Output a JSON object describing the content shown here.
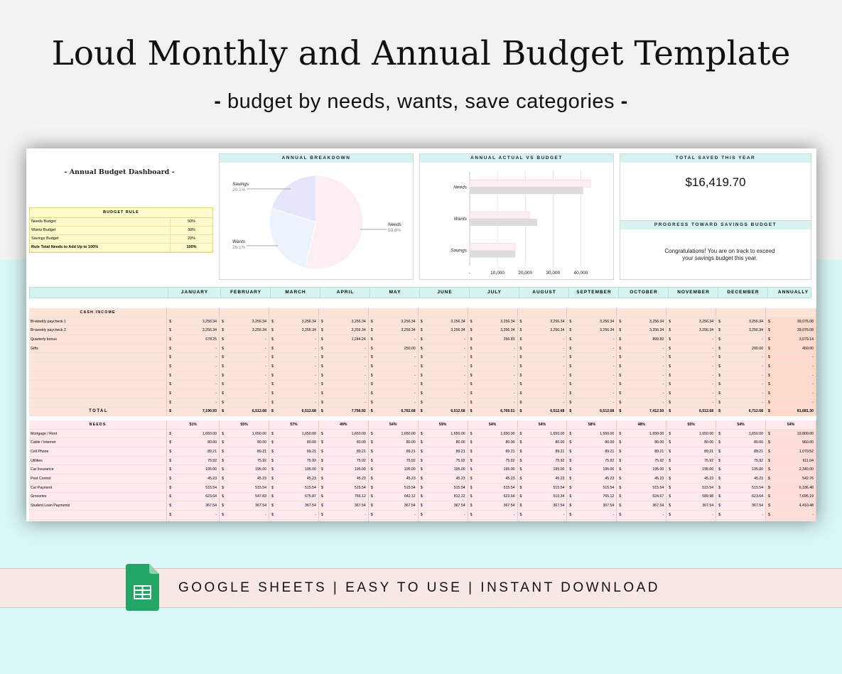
{
  "page": {
    "title": "Loud Monthly and Annual Budget Template",
    "subtitle_prefix": "-",
    "subtitle": "budget by needs, wants, save categories",
    "subtitle_suffix": "-",
    "banner": "GOOGLE SHEETS | EASY TO USE | INSTANT DOWNLOAD"
  },
  "colors": {
    "teal": "#d6f3f1",
    "income_pink": "#fde4da",
    "needs_pink": "#fde9ee",
    "yellow": "#fffbcc"
  },
  "dashboard": {
    "title": "- Annual Budget Dashboard -",
    "budget_rule": {
      "header": "BUDGET RULE",
      "rows": [
        {
          "label": "Needs Budget",
          "value": "50%"
        },
        {
          "label": "Wants Budget",
          "value": "30%"
        },
        {
          "label": "Savings Budget",
          "value": "20%"
        },
        {
          "label": "Rule Total Needs to Add Up to 100%",
          "value": "100%"
        }
      ]
    },
    "breakdown": {
      "header": "ANNUAL BREAKDOWN",
      "labels": [
        {
          "name": "Savings",
          "pct": "20.1%"
        },
        {
          "name": "Wants",
          "pct": "26.1%"
        },
        {
          "name": "Needs",
          "pct": "53.8%"
        }
      ]
    },
    "actual_vs_budget": {
      "header": "ANNUAL ACTUAL VS BUDGET"
    },
    "total_saved": {
      "header": "TOTAL SAVED THIS YEAR",
      "value": "$16,419.70"
    },
    "progress": {
      "header": "PROGRESS TOWARD SAVINGS BUDGET",
      "message": "Congratulations! You are on track to exceed your savings budget this year."
    }
  },
  "chart_data": [
    {
      "type": "pie",
      "title": "ANNUAL BREAKDOWN",
      "categories": [
        "Needs",
        "Wants",
        "Savings"
      ],
      "values": [
        53.8,
        26.1,
        20.1
      ],
      "colors": [
        "#fdeef2",
        "#ecf3fd",
        "#e6e6fb"
      ]
    },
    {
      "type": "bar",
      "orientation": "horizontal",
      "title": "ANNUAL ACTUAL VS BUDGET",
      "categories": [
        "Needs",
        "Wants",
        "Savings"
      ],
      "series": [
        {
          "values": [
            43500,
            21500,
            16400
          ],
          "color": "#fdeef2"
        },
        {
          "values": [
            40841,
            24300,
            16420
          ],
          "color": "#dcdcdc"
        }
      ],
      "xlim": [
        0,
        45000
      ],
      "ticks": [
        "-",
        "10,000",
        "20,000",
        "30,000",
        "40,000"
      ],
      "tick_values": [
        0,
        10000,
        20000,
        30000,
        40000
      ]
    }
  ],
  "months": [
    "JANUARY",
    "FEBRUARY",
    "MARCH",
    "APRIL",
    "MAY",
    "JUNE",
    "JULY",
    "AUGUST",
    "SEPTEMBER",
    "OCTOBER",
    "NOVEMBER",
    "DECEMBER",
    "ANNUALLY"
  ],
  "income": {
    "header": "CASH INCOME",
    "rows": [
      {
        "label": "Bi-weekly paycheck 1",
        "values": [
          "3,256.34",
          "3,256.34",
          "3,256.34",
          "3,256.34",
          "3,256.34",
          "3,256.34",
          "3,256.34",
          "3,256.34",
          "3,256.34",
          "3,256.34",
          "3,256.34",
          "3,256.34",
          "39,076.08"
        ]
      },
      {
        "label": "Bi-weekly paycheck 2",
        "values": [
          "3,256.34",
          "3,256.34",
          "3,256.34",
          "3,256.34",
          "3,256.34",
          "3,256.34",
          "3,256.34",
          "3,256.34",
          "3,256.34",
          "3,256.34",
          "3,256.34",
          "3,256.34",
          "39,076.08"
        ]
      },
      {
        "label": "Quarterly bonus",
        "values": [
          "678.25",
          "-",
          "-",
          "1,244.24",
          "-",
          "-",
          "256.83",
          "-",
          "-",
          "899.82",
          "-",
          "-",
          "3,079.14"
        ]
      },
      {
        "label": "Gifts",
        "values": [
          "-",
          "-",
          "-",
          "-",
          "250.00",
          "-",
          "-",
          "-",
          "-",
          "-",
          "-",
          "200.00",
          "450.00"
        ]
      },
      {
        "label": "",
        "values": [
          "-",
          "-",
          "-",
          "-",
          "-",
          "-",
          "-",
          "-",
          "-",
          "-",
          "-",
          "-",
          "-"
        ]
      },
      {
        "label": "",
        "values": [
          "-",
          "-",
          "-",
          "-",
          "-",
          "-",
          "-",
          "-",
          "-",
          "-",
          "-",
          "-",
          "-"
        ]
      },
      {
        "label": "",
        "values": [
          "-",
          "-",
          "-",
          "-",
          "-",
          "-",
          "-",
          "-",
          "-",
          "-",
          "-",
          "-",
          "-"
        ]
      },
      {
        "label": "",
        "values": [
          "-",
          "-",
          "-",
          "-",
          "-",
          "-",
          "-",
          "-",
          "-",
          "-",
          "-",
          "-",
          "-"
        ]
      },
      {
        "label": "",
        "values": [
          "-",
          "-",
          "-",
          "-",
          "-",
          "-",
          "-",
          "-",
          "-",
          "-",
          "-",
          "-",
          "-"
        ]
      },
      {
        "label": "",
        "values": [
          "-",
          "-",
          "-",
          "-",
          "-",
          "-",
          "-",
          "-",
          "-",
          "-",
          "-",
          "-",
          "-"
        ]
      }
    ],
    "total": {
      "label": "TOTAL",
      "values": [
        "7,190.93",
        "6,512.68",
        "6,512.68",
        "7,756.92",
        "6,762.68",
        "6,512.68",
        "6,769.51",
        "6,512.68",
        "6,512.68",
        "7,412.50",
        "6,512.68",
        "6,712.68",
        "81,681.30"
      ]
    }
  },
  "needs": {
    "header": "NEEDS",
    "percents": [
      "51%",
      "55%",
      "57%",
      "49%",
      "54%",
      "59%",
      "54%",
      "54%",
      "58%",
      "48%",
      "55%",
      "54%",
      "54%"
    ],
    "rows": [
      {
        "label": "Mortgage / Rent",
        "values": [
          "1,650.00",
          "1,650.00",
          "1,650.00",
          "1,650.00",
          "1,650.00",
          "1,650.00",
          "1,650.00",
          "1,650.00",
          "1,650.00",
          "1,650.00",
          "1,650.00",
          "1,650.00",
          "19,800.00"
        ]
      },
      {
        "label": "Cable / Internet",
        "values": [
          "80.00",
          "80.00",
          "80.00",
          "80.00",
          "80.00",
          "80.00",
          "80.00",
          "80.00",
          "80.00",
          "80.00",
          "80.00",
          "80.00",
          "960.00"
        ]
      },
      {
        "label": "Cell Phone",
        "values": [
          "89.21",
          "89.21",
          "89.21",
          "89.21",
          "89.21",
          "89.21",
          "89.21",
          "89.21",
          "89.21",
          "89.21",
          "89.21",
          "89.21",
          "1,070.52"
        ]
      },
      {
        "label": "Utilities",
        "values": [
          "75.92",
          "75.92",
          "75.92",
          "75.92",
          "75.92",
          "75.92",
          "75.92",
          "75.92",
          "75.92",
          "75.92",
          "75.92",
          "75.92",
          "911.04"
        ]
      },
      {
        "label": "Car Insurance",
        "values": [
          "195.00",
          "195.00",
          "195.00",
          "195.00",
          "195.00",
          "195.00",
          "195.00",
          "195.00",
          "195.00",
          "195.00",
          "195.00",
          "195.00",
          "2,340.00"
        ]
      },
      {
        "label": "Pest Control",
        "values": [
          "45.23",
          "45.23",
          "45.23",
          "45.23",
          "45.23",
          "45.23",
          "45.23",
          "45.23",
          "45.23",
          "45.23",
          "45.23",
          "45.23",
          "542.76"
        ]
      },
      {
        "label": "Car Payment",
        "values": [
          "515.54",
          "515.54",
          "515.54",
          "515.54",
          "515.54",
          "515.54",
          "515.54",
          "515.54",
          "515.54",
          "515.54",
          "515.54",
          "515.54",
          "6,186.48"
        ]
      },
      {
        "label": "Groceries",
        "values": [
          "623.64",
          "547.83",
          "675.87",
          "756.12",
          "642.12",
          "812.22",
          "623.64",
          "510.34",
          "765.12",
          "524.67",
          "589.98",
          "623.64",
          "7,695.19"
        ]
      },
      {
        "label": "Student Loan Payments",
        "values": [
          "367.54",
          "367.54",
          "367.54",
          "367.54",
          "367.54",
          "367.54",
          "367.54",
          "367.54",
          "367.54",
          "367.54",
          "367.54",
          "367.54",
          "4,410.48"
        ]
      },
      {
        "label": "",
        "values": [
          "-",
          "-",
          "-",
          "-",
          "-",
          "-",
          "-",
          "-",
          "-",
          "-",
          "-",
          "-",
          "-"
        ]
      },
      {
        "label": "",
        "values": [
          "-",
          "-",
          "-",
          "-",
          "-",
          "-",
          "-",
          "-",
          "-",
          "-",
          "-",
          "-",
          "-"
        ]
      }
    ]
  }
}
